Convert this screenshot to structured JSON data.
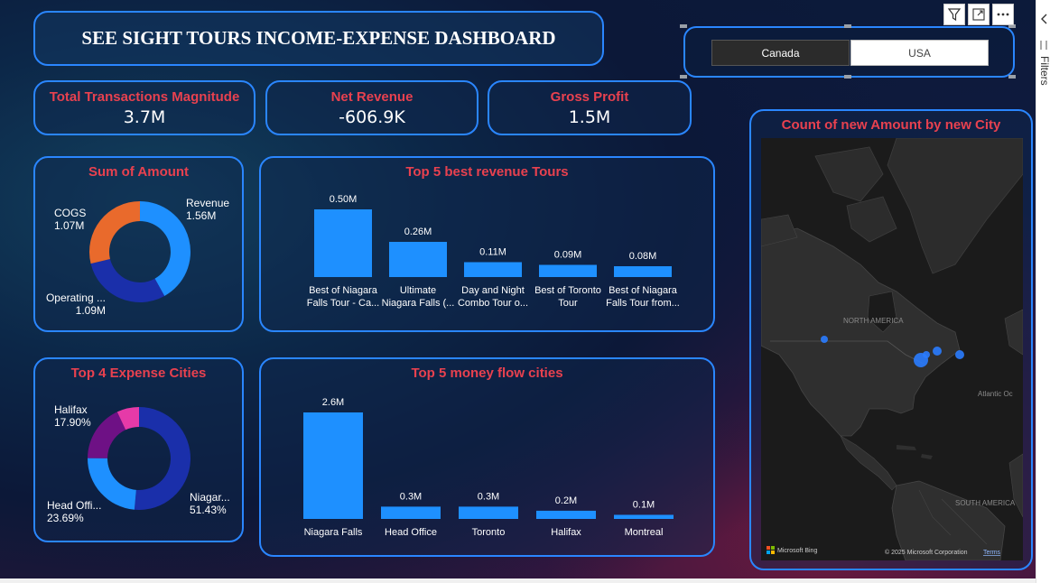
{
  "dashboard_title": "SEE SIGHT TOURS INCOME-EXPENSE DASHBOARD",
  "slicer": {
    "options": [
      "Canada",
      "USA"
    ],
    "selected": "Canada"
  },
  "kpis": [
    {
      "label": "Total Transactions Magnitude",
      "value": "3.7M"
    },
    {
      "label": "Net Revenue",
      "value": "-606.9K"
    },
    {
      "label": "Gross Profit",
      "value": "1.5M"
    }
  ],
  "sum_of_amount": {
    "title": "Sum of Amount",
    "chart_data": {
      "type": "pie",
      "slices": [
        {
          "name": "Revenue",
          "value": 1.56,
          "label": "1.56M",
          "color": "#1e90ff"
        },
        {
          "name": "Operating ...",
          "value": 1.09,
          "label": "1.09M",
          "color": "#1a2faa"
        },
        {
          "name": "COGS",
          "value": 1.07,
          "label": "1.07M",
          "color": "#e96a2c"
        }
      ]
    }
  },
  "top_revenue_tours": {
    "title": "Top 5 best revenue Tours",
    "chart_data": {
      "type": "bar",
      "categories": [
        [
          "Best of Niagara",
          "Falls Tour - Ca..."
        ],
        [
          "Ultimate",
          "Niagara Falls (..."
        ],
        [
          "Day and Night",
          "Combo Tour o..."
        ],
        [
          "Best of Toronto",
          "Tour"
        ],
        [
          "Best of Niagara",
          "Falls Tour from..."
        ]
      ],
      "values": [
        0.5,
        0.26,
        0.11,
        0.09,
        0.08
      ],
      "labels": [
        "0.50M",
        "0.26M",
        "0.11M",
        "0.09M",
        "0.08M"
      ],
      "color": "#1e90ff"
    }
  },
  "top_expense_cities": {
    "title": "Top 4 Expense Cities",
    "chart_data": {
      "type": "pie",
      "slices": [
        {
          "name": "Niagar...",
          "value": 51.43,
          "label": "51.43%",
          "color": "#1a2faa"
        },
        {
          "name": "Head Offi...",
          "value": 23.69,
          "label": "23.69%",
          "color": "#1e90ff"
        },
        {
          "name": "Halifax",
          "value": 17.9,
          "label": "17.90%",
          "color": "#6e1185"
        },
        {
          "name": "",
          "value": 6.98,
          "label": "",
          "color": "#e63aa8"
        }
      ]
    }
  },
  "money_flow_cities": {
    "title": "Top 5 money flow cities",
    "chart_data": {
      "type": "bar",
      "categories": [
        "Niagara Falls",
        "Head Office",
        "Toronto",
        "Halifax",
        "Montreal"
      ],
      "values": [
        2.6,
        0.3,
        0.3,
        0.2,
        0.1
      ],
      "labels": [
        "2.6M",
        "0.3M",
        "0.3M",
        "0.2M",
        "0.1M"
      ],
      "color": "#1e90ff"
    }
  },
  "map": {
    "title": "Count of new Amount by new City",
    "labels": {
      "north_america": "NORTH AMERICA",
      "south_america": "SOUTH AMERICA",
      "atlantic": "Atlantic Oc"
    },
    "attribution": "Microsoft Bing",
    "copyright": "© 2025 Microsoft Corporation",
    "terms": "Terms"
  },
  "toolbar": {
    "icons": [
      "filter-icon",
      "focus-mode-icon",
      "more-options-icon"
    ]
  },
  "filters_pane": {
    "label": "Filters"
  }
}
